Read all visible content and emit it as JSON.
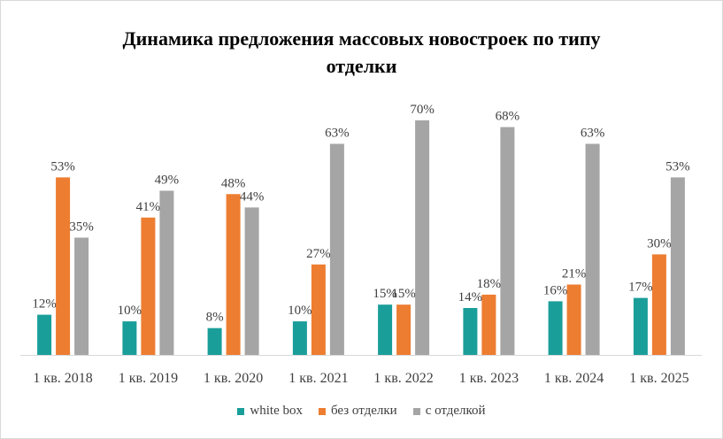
{
  "chart_data": {
    "type": "bar",
    "title": "Динамика  предложения массовых новостроек  по типу отделки",
    "title_lines": [
      "Динамика  предложения массовых новостроек  по типу",
      "отделки"
    ],
    "categories": [
      "1 кв. 2018",
      "1 кв. 2019",
      "1 кв. 2020",
      "1 кв. 2021",
      "1 кв. 2022",
      "1 кв. 2023",
      "1 кв. 2024",
      "1 кв. 2025"
    ],
    "series": [
      {
        "name": "white box",
        "color": "#1a9e9a",
        "values": [
          12,
          10,
          8,
          10,
          15,
          14,
          16,
          17
        ]
      },
      {
        "name": "без отделки",
        "color": "#ed7d31",
        "values": [
          53,
          41,
          48,
          27,
          15,
          18,
          21,
          30
        ]
      },
      {
        "name": "с отделкой",
        "color": "#a5a5a5",
        "values": [
          35,
          49,
          44,
          63,
          70,
          68,
          63,
          53
        ]
      }
    ],
    "value_suffix": "%",
    "xlabel": "",
    "ylabel": "",
    "ylim": [
      0,
      70
    ],
    "grid": false,
    "legend_position": "bottom"
  }
}
